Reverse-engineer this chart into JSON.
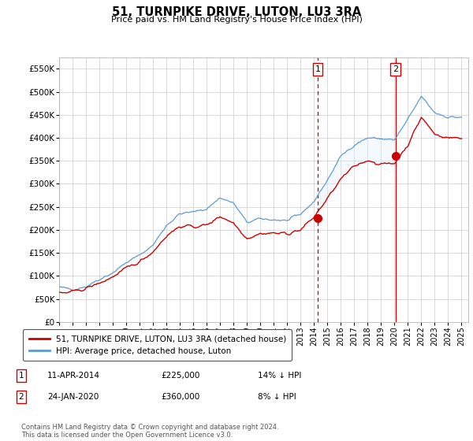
{
  "title": "51, TURNPIKE DRIVE, LUTON, LU3 3RA",
  "subtitle": "Price paid vs. HM Land Registry's House Price Index (HPI)",
  "xlim": [
    1995.0,
    2025.5
  ],
  "ylim": [
    0,
    575000
  ],
  "yticks": [
    0,
    50000,
    100000,
    150000,
    200000,
    250000,
    300000,
    350000,
    400000,
    450000,
    500000,
    550000
  ],
  "ytick_labels": [
    "£0",
    "£50K",
    "£100K",
    "£150K",
    "£200K",
    "£250K",
    "£300K",
    "£350K",
    "£400K",
    "£450K",
    "£500K",
    "£550K"
  ],
  "xticks": [
    1995,
    1996,
    1997,
    1998,
    1999,
    2000,
    2001,
    2002,
    2003,
    2004,
    2005,
    2006,
    2007,
    2008,
    2009,
    2010,
    2011,
    2012,
    2013,
    2014,
    2015,
    2016,
    2017,
    2018,
    2019,
    2020,
    2021,
    2022,
    2023,
    2024,
    2025
  ],
  "sale1_x": 2014.278,
  "sale1_y": 225000,
  "sale1_label": "1",
  "sale2_x": 2020.07,
  "sale2_y": 360000,
  "sale2_label": "2",
  "hpi_color": "#5b9bd5",
  "hpi_fill_color": "#ddeeff",
  "price_color": "#cc0000",
  "marker_color": "#cc0000",
  "vline1_color": "#cc0000",
  "vline2_color": "#cc0000",
  "background_color": "#ffffff",
  "grid_color": "#cccccc",
  "legend_label_price": "51, TURNPIKE DRIVE, LUTON, LU3 3RA (detached house)",
  "legend_label_hpi": "HPI: Average price, detached house, Luton",
  "annotation1_date": "11-APR-2014",
  "annotation1_price": "£225,000",
  "annotation1_hpi": "14% ↓ HPI",
  "annotation2_date": "24-JAN-2020",
  "annotation2_price": "£360,000",
  "annotation2_hpi": "8% ↓ HPI",
  "footer": "Contains HM Land Registry data © Crown copyright and database right 2024.\nThis data is licensed under the Open Government Licence v3.0."
}
